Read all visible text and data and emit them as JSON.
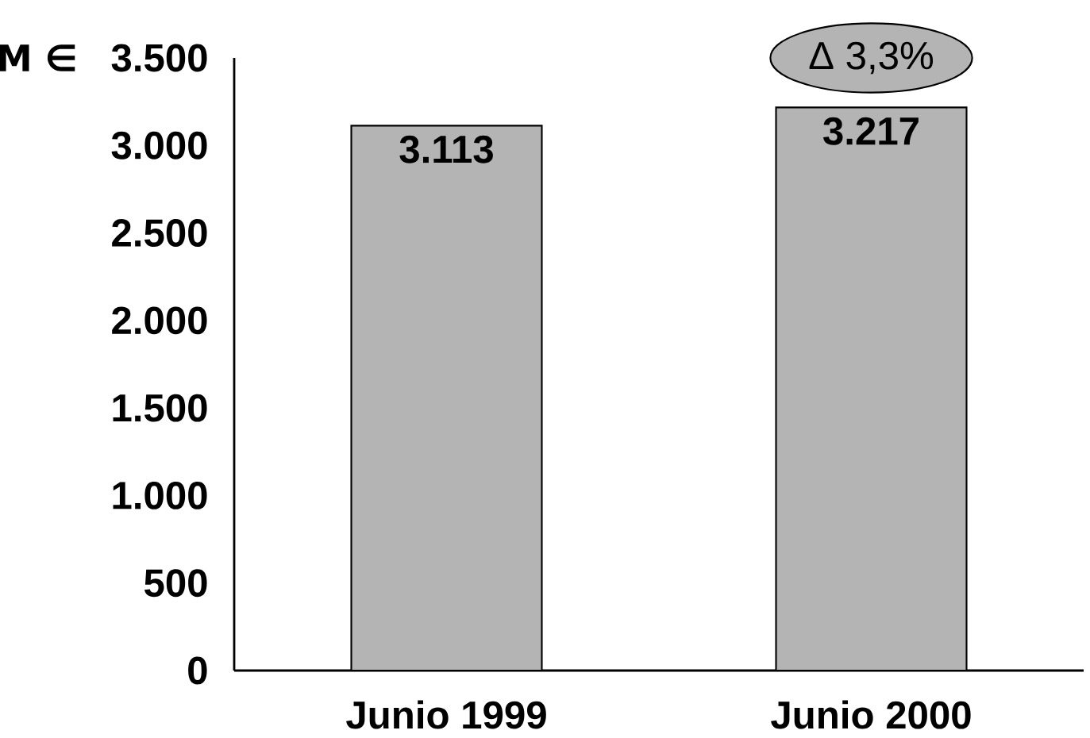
{
  "chart_data": {
    "type": "bar",
    "ylabel": "M ∈",
    "categories": [
      "Junio 1999",
      "Junio 2000"
    ],
    "values": [
      3113,
      3217
    ],
    "value_labels": [
      "3.113",
      "3.217"
    ],
    "color": "#b4b4b4",
    "ylim": [
      0,
      3500
    ],
    "yticks": [
      0,
      500,
      {
        "value": 1000,
        "label": "1.000"
      },
      {
        "value": 1500,
        "label": "1.500"
      },
      {
        "value": 2000,
        "label": "2.000"
      },
      {
        "value": 2500,
        "label": "2.500"
      },
      {
        "value": 3000,
        "label": "3.000"
      },
      {
        "value": 3500,
        "label": "3.500"
      }
    ],
    "annotations": [
      "Δ 3,3%"
    ],
    "grid": false
  }
}
